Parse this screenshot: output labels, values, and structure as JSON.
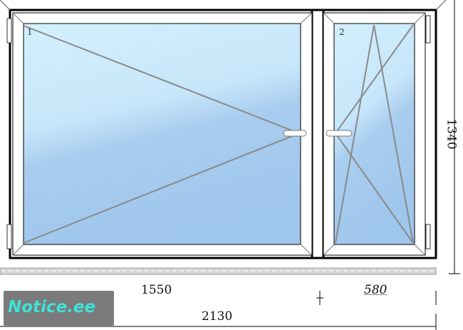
{
  "sashes": [
    {
      "number": "1",
      "opening": "turn-left"
    },
    {
      "number": "2",
      "opening": "tilt-turn-right"
    }
  ],
  "dimensions": {
    "left_width": "1550",
    "right_width": "580",
    "total_width": "2130",
    "height": "1340"
  },
  "watermark": "Notice.ee",
  "colors": {
    "glass_top": "#d3f0fd",
    "glass_bottom": "#9fc6ec",
    "frame": "#ffffff",
    "outline": "#000000",
    "opening_lines": "#8a8a8a",
    "watermark_text": "#3fe3d9",
    "watermark_bg": "#7b7b7b"
  }
}
